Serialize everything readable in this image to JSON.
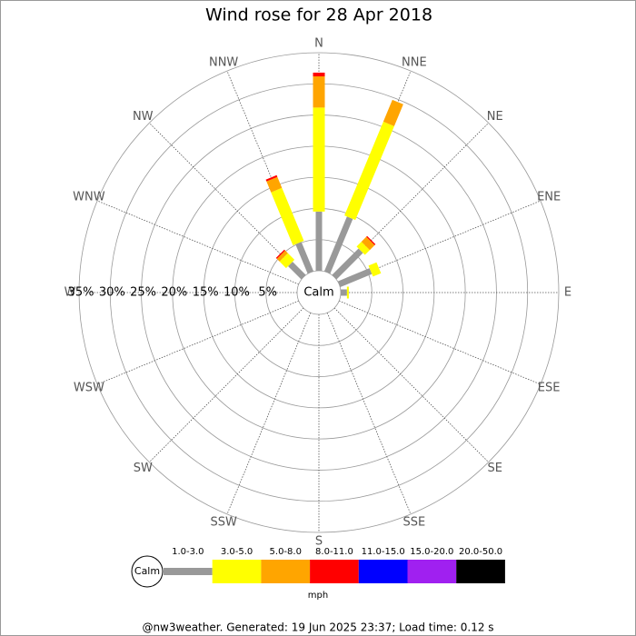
{
  "chart_data": {
    "type": "windrose",
    "title": "Wind rose for 28 Apr 2018",
    "directions": [
      "N",
      "NNE",
      "NE",
      "ENE",
      "E",
      "ESE",
      "SE",
      "SSE",
      "S",
      "SSW",
      "SW",
      "WSW",
      "W",
      "WNW",
      "NW",
      "NNW"
    ],
    "calm_label": "Calm",
    "unit_label": "mph",
    "rlim": [
      0,
      35
    ],
    "rticks": [
      {
        "value": 5,
        "label": "5%"
      },
      {
        "value": 10,
        "label": "10%"
      },
      {
        "value": 15,
        "label": "15%"
      },
      {
        "value": 20,
        "label": "20%"
      },
      {
        "value": 25,
        "label": "25%"
      },
      {
        "value": 30,
        "label": "30%"
      },
      {
        "value": 35,
        "label": "35%"
      }
    ],
    "series": [
      {
        "name": "1.0-3.0",
        "color": "#999999",
        "values": [
          9.5,
          9.5,
          6.0,
          5.5,
          1.0,
          0,
          0,
          0,
          0,
          0,
          0,
          0,
          0,
          0,
          3.0,
          5.1
        ]
      },
      {
        "name": "3.0-5.0",
        "color": "#ffff00",
        "values": [
          16.7,
          16.3,
          1.1,
          1.4,
          0.3,
          0,
          0,
          0,
          0,
          0,
          0,
          0,
          0,
          0,
          1.5,
          9.2
        ]
      },
      {
        "name": "5.0-8.0",
        "color": "#ffa500",
        "values": [
          5.0,
          3.8,
          1.1,
          0,
          0,
          0,
          0,
          0,
          0,
          0,
          0,
          0,
          0,
          0,
          0.6,
          1.9
        ]
      },
      {
        "name": "8.0-11.0",
        "color": "#ff0000",
        "values": [
          0.6,
          0,
          0.2,
          0,
          0,
          0,
          0,
          0,
          0,
          0,
          0,
          0,
          0,
          0,
          0.2,
          0.3
        ]
      },
      {
        "name": "11.0-15.0",
        "color": "#0000ff",
        "values": [
          0,
          0,
          0,
          0,
          0,
          0,
          0,
          0,
          0,
          0,
          0,
          0,
          0,
          0,
          0,
          0
        ]
      },
      {
        "name": "15.0-20.0",
        "color": "#a020f0",
        "values": [
          0,
          0,
          0,
          0,
          0,
          0,
          0,
          0,
          0,
          0,
          0,
          0,
          0,
          0,
          0,
          0
        ]
      },
      {
        "name": "20.0-50.0",
        "color": "#000000",
        "values": [
          0,
          0,
          0,
          0,
          0,
          0,
          0,
          0,
          0,
          0,
          0,
          0,
          0,
          0,
          0,
          0
        ]
      }
    ]
  },
  "footer": "@nw3weather. Generated: 19 Jun 2025 23:37; Load time: 0.12 s"
}
